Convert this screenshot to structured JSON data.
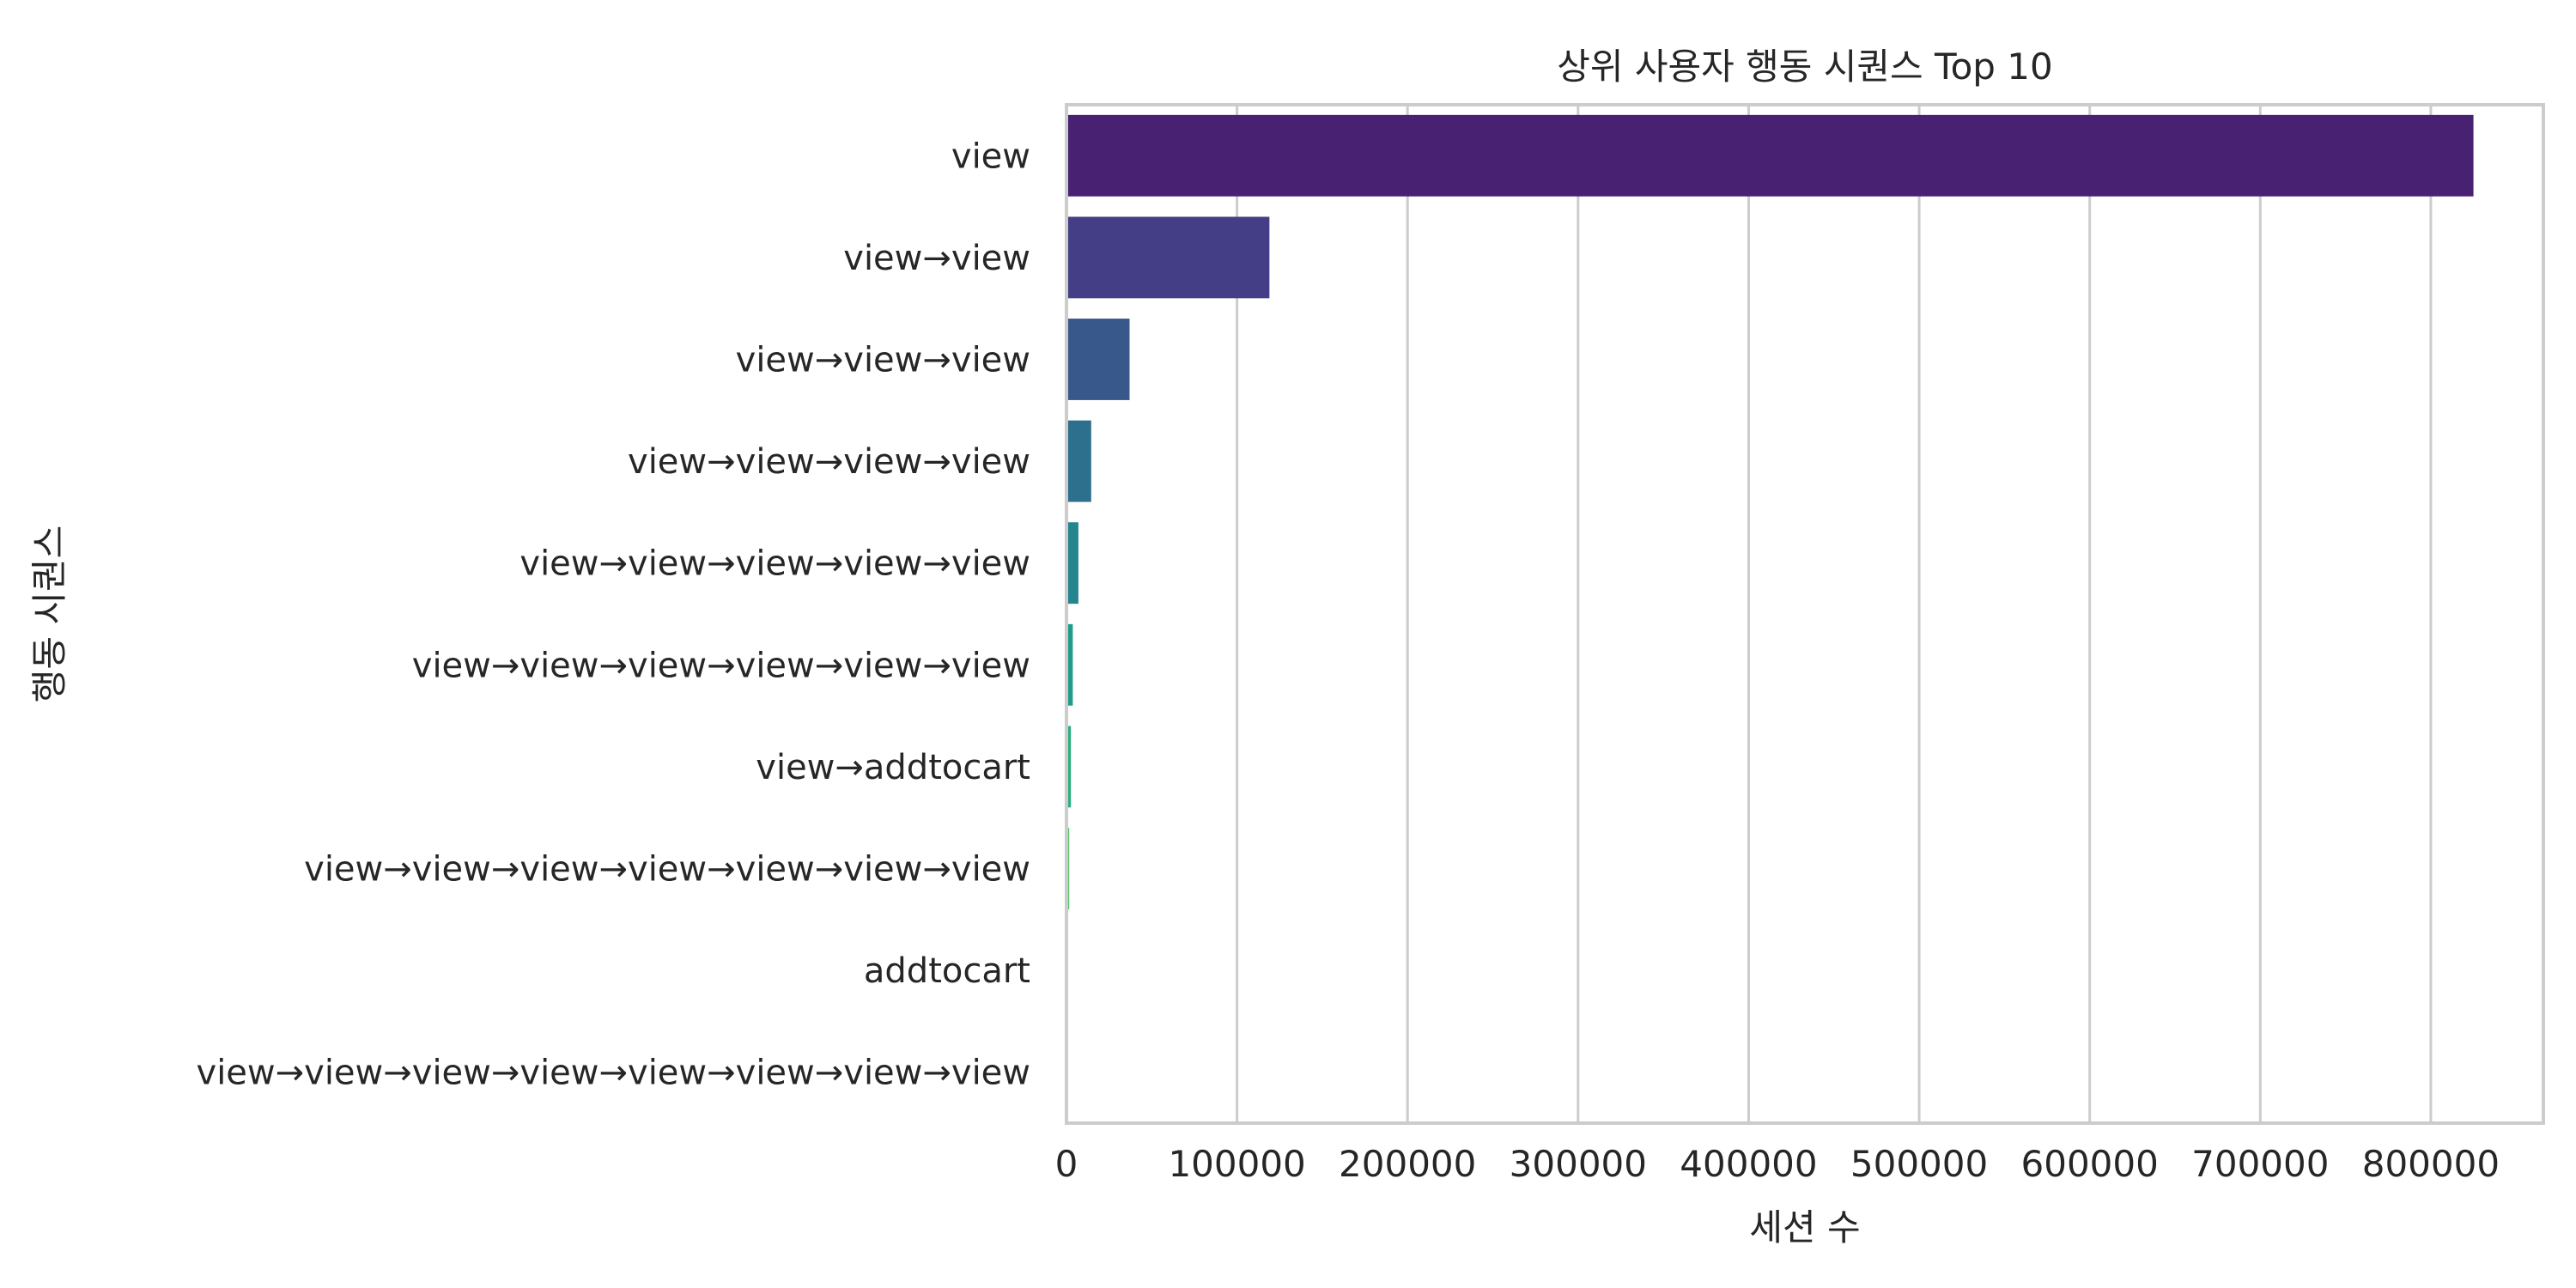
{
  "chart_data": {
    "type": "bar",
    "orientation": "horizontal",
    "title": "상위 사용자 행동 시퀀스 Top 10",
    "xlabel": "세션 수",
    "ylabel": "행동 시퀀스",
    "categories": [
      "view",
      "view→view",
      "view→view→view",
      "view→view→view→view",
      "view→view→view→view→view",
      "view→view→view→view→view→view",
      "view→addtocart",
      "view→view→view→view→view→view→view",
      "addtocart",
      "view→view→view→view→view→view→view→view"
    ],
    "values": [
      825000,
      119000,
      37000,
      14500,
      7000,
      3700,
      2600,
      1600,
      800,
      700
    ],
    "colors": [
      "#482173",
      "#433e85",
      "#38588c",
      "#2d708e",
      "#25858e",
      "#1e9b8a",
      "#2ab07f",
      "#52c569",
      "#86d549",
      "#c2df23"
    ],
    "xlim": [
      0,
      866000
    ],
    "xticks": [
      0,
      100000,
      200000,
      300000,
      400000,
      500000,
      600000,
      700000,
      800000
    ],
    "grid": "vertical",
    "legend": "none"
  }
}
